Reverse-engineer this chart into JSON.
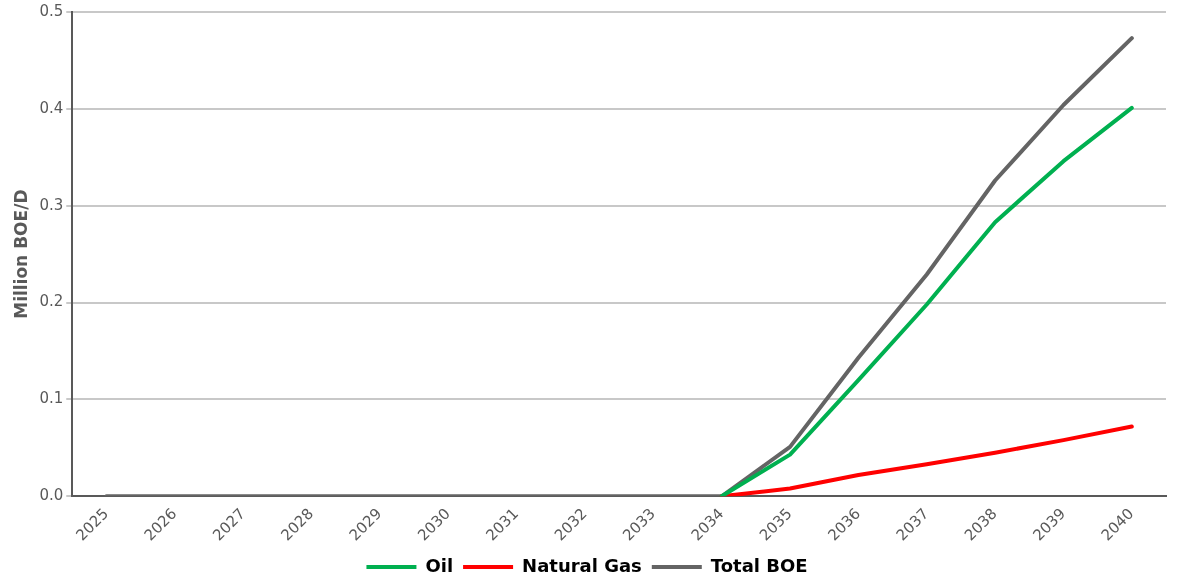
{
  "chart_data": {
    "type": "line",
    "ylabel": "Million BOE/D",
    "categories": [
      "2025",
      "2026",
      "2027",
      "2028",
      "2029",
      "2030",
      "2031",
      "2032",
      "2033",
      "2034",
      "2035",
      "2036",
      "2037",
      "2038",
      "2039",
      "2040"
    ],
    "series": [
      {
        "name": "Oil",
        "color": "#00b050",
        "values": [
          null,
          null,
          null,
          null,
          null,
          null,
          null,
          null,
          null,
          0,
          0.043,
          0.12,
          0.198,
          0.283,
          0.346,
          0.401
        ]
      },
      {
        "name": "Natural Gas",
        "color": "#ff0000",
        "values": [
          null,
          null,
          null,
          null,
          null,
          null,
          null,
          null,
          null,
          0,
          0.008,
          0.022,
          0.033,
          0.045,
          0.058,
          0.072
        ]
      },
      {
        "name": "Total BOE",
        "color": "#646464",
        "values": [
          0,
          0,
          0,
          0,
          0,
          0,
          0,
          0,
          0,
          0,
          0.051,
          0.143,
          0.229,
          0.326,
          0.404,
          0.473
        ]
      }
    ],
    "ylim": [
      0,
      0.5
    ],
    "yticks": [
      {
        "value": 0,
        "label": "0.0"
      },
      0.1,
      0.2,
      0.3,
      0.4,
      0.5
    ],
    "grid": "y",
    "legend": "bottom",
    "marker": "none",
    "line_style": "solid"
  }
}
